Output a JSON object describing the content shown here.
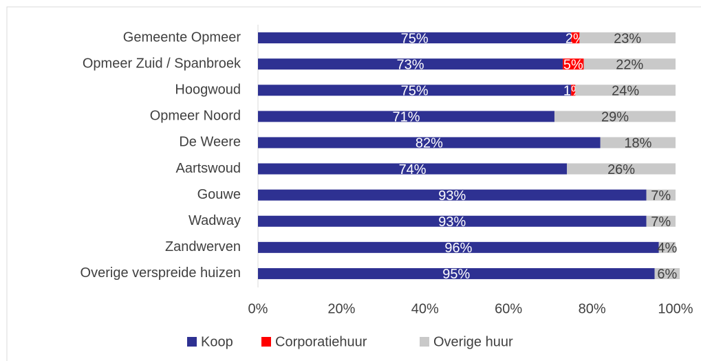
{
  "chart_data": {
    "type": "stacked-barh",
    "categories": [
      "Gemeente Opmeer",
      "Opmeer Zuid / Spanbroek",
      "Hoogwoud",
      "Opmeer Noord",
      "De Weere",
      "Aartswoud",
      "Gouwe",
      "Wadway",
      "Zandwerven",
      "Overige verspreide huizen"
    ],
    "series": [
      {
        "name": "Koop",
        "color": "#2e3192",
        "values": [
          75,
          73,
          75,
          71,
          82,
          74,
          93,
          93,
          96,
          95
        ],
        "value_labels": [
          "75%",
          "73%",
          "75%",
          "71%",
          "82%",
          "74%",
          "93%",
          "93%",
          "96%",
          "95%"
        ]
      },
      {
        "name": "Corporatiehuur",
        "color": "#ff0000",
        "values": [
          2,
          5,
          1,
          null,
          null,
          null,
          null,
          null,
          null,
          null
        ],
        "value_labels": [
          "2%",
          "5%",
          "1%",
          null,
          null,
          null,
          null,
          null,
          null,
          null
        ]
      },
      {
        "name": "Overige huur",
        "color": "#c9c9c9",
        "values": [
          23,
          22,
          24,
          29,
          18,
          26,
          7,
          7,
          4,
          6
        ],
        "value_labels": [
          "23%",
          "22%",
          "24%",
          "29%",
          "18%",
          "26%",
          "7%",
          "7%",
          "4%",
          "6%"
        ]
      }
    ],
    "xlim": [
      0,
      100
    ],
    "xticks": [
      {
        "value": 0,
        "label": "0%"
      },
      {
        "value": 20,
        "label": "20%"
      },
      {
        "value": 40,
        "label": "40%"
      },
      {
        "value": 60,
        "label": "60%"
      },
      {
        "value": 80,
        "label": "80%"
      },
      {
        "value": 100,
        "label": "100%"
      }
    ],
    "legend": "bottom"
  }
}
